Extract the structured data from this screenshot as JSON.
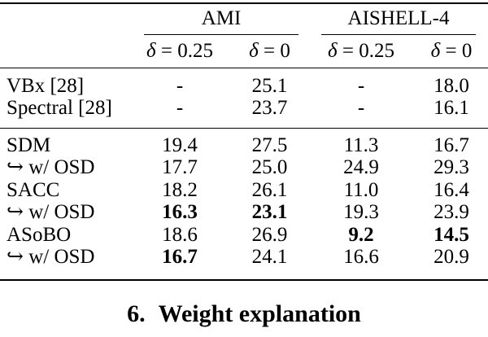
{
  "table": {
    "groups": [
      {
        "label": "AMI"
      },
      {
        "label": "AISHELL-4"
      }
    ],
    "sub_headers": [
      {
        "sym": "δ",
        "rest": "= 0.25"
      },
      {
        "sym": "δ",
        "rest": "= 0"
      },
      {
        "sym": "δ",
        "rest": "= 0.25"
      },
      {
        "sym": "δ",
        "rest": "= 0"
      }
    ],
    "baseline_rows": [
      {
        "label": "VBx [28]",
        "values": [
          {
            "v": "-",
            "b": false
          },
          {
            "v": "25.1",
            "b": false
          },
          {
            "v": "-",
            "b": false
          },
          {
            "v": "18.0",
            "b": false
          }
        ]
      },
      {
        "label": "Spectral [28]",
        "values": [
          {
            "v": "-",
            "b": false
          },
          {
            "v": "23.7",
            "b": false
          },
          {
            "v": "-",
            "b": false
          },
          {
            "v": "16.1",
            "b": false
          }
        ]
      }
    ],
    "system_rows": [
      {
        "label": "SDM",
        "values": [
          {
            "v": "19.4",
            "b": false
          },
          {
            "v": "27.5",
            "b": false
          },
          {
            "v": "11.3",
            "b": false
          },
          {
            "v": "16.7",
            "b": false
          }
        ]
      },
      {
        "label": "↪ w/ OSD",
        "values": [
          {
            "v": "17.7",
            "b": false
          },
          {
            "v": "25.0",
            "b": false
          },
          {
            "v": "24.9",
            "b": false
          },
          {
            "v": "29.3",
            "b": false
          }
        ]
      },
      {
        "label": "SACC",
        "values": [
          {
            "v": "18.2",
            "b": false
          },
          {
            "v": "26.1",
            "b": false
          },
          {
            "v": "11.0",
            "b": false
          },
          {
            "v": "16.4",
            "b": false
          }
        ]
      },
      {
        "label": "↪ w/ OSD",
        "values": [
          {
            "v": "16.3",
            "b": true
          },
          {
            "v": "23.1",
            "b": true
          },
          {
            "v": "19.3",
            "b": false
          },
          {
            "v": "23.9",
            "b": false
          }
        ]
      },
      {
        "label": "ASoBO",
        "values": [
          {
            "v": "18.6",
            "b": false
          },
          {
            "v": "26.9",
            "b": false
          },
          {
            "v": "9.2",
            "b": true
          },
          {
            "v": "14.5",
            "b": true
          }
        ]
      },
      {
        "label": "↪ w/ OSD",
        "values": [
          {
            "v": "16.7",
            "b": true
          },
          {
            "v": "24.1",
            "b": false
          },
          {
            "v": "16.6",
            "b": false
          },
          {
            "v": "20.9",
            "b": false
          }
        ]
      }
    ]
  },
  "section_heading": {
    "number": "6.",
    "title": "Weight explanation"
  },
  "colors": {
    "text": "#000000",
    "rule": "#000000",
    "background": "#ffffff"
  }
}
